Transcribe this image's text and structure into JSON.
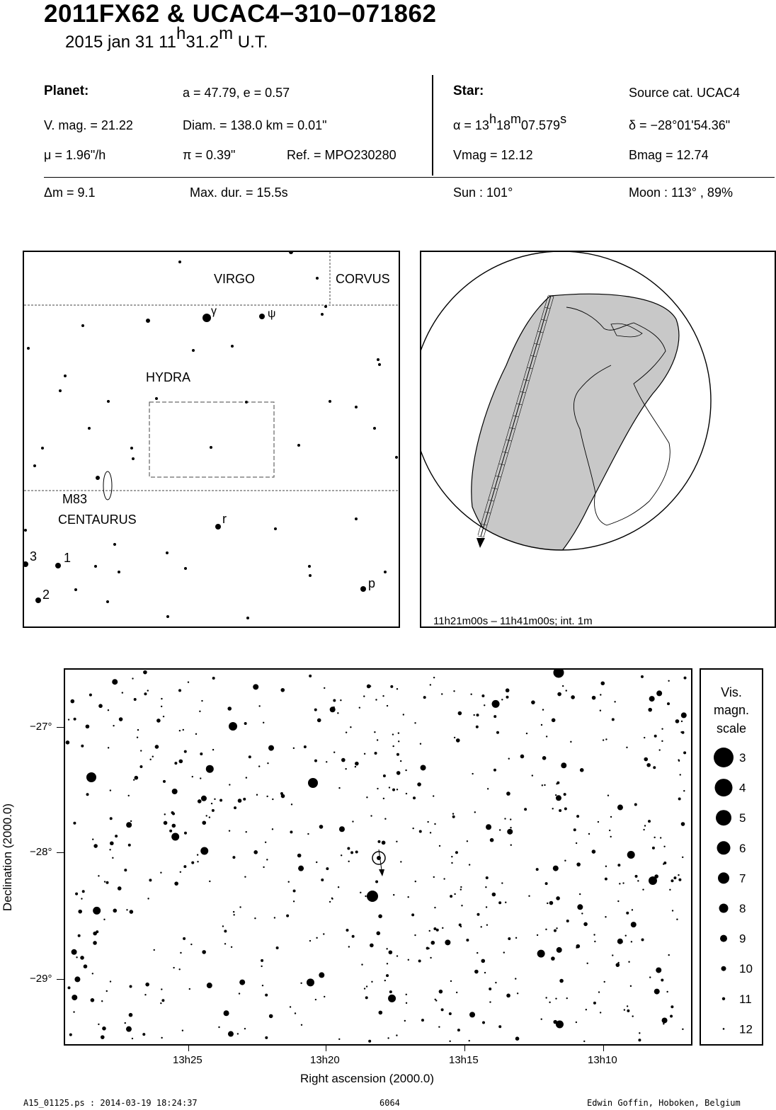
{
  "header": {
    "title": "2011FX62  &  UCAC4−310−071862",
    "date": "2015 jan 31  11",
    "hour_sup": "h",
    "minutes": "31.2",
    "min_sup": "m",
    "ut": " U.T."
  },
  "planet": {
    "heading": "Planet:",
    "orbit": "a = 47.79, e = 0.57",
    "vmag": "V. mag. = 21.22",
    "diam": "Diam. = 138.0 km = 0.01\"",
    "mu": "μ =  1.96\"/h",
    "pi": "π =  0.39\"",
    "ref": "Ref. = MPO230280"
  },
  "star": {
    "heading": "Star:",
    "source": "Source cat.  UCAC4",
    "alpha_prefix": "α = 13",
    "alpha_h": "h",
    "alpha_mid": "18",
    "alpha_m": "m",
    "alpha_sec": "07.579",
    "alpha_s": "s",
    "delta": "δ = −28°01'54.36\"",
    "vmag": "Vmag = 12.12",
    "bmag": "Bmag = 12.74"
  },
  "event": {
    "dm": "Δm = 9.1",
    "maxdur": "Max. dur. = 15.5s",
    "sun": "Sun : 101°",
    "moon": "Moon : 113° , 89%"
  },
  "finder": {
    "constellations": [
      "VIRGO",
      "CORVUS",
      "HYDRA",
      "CENTAURUS"
    ],
    "object": "M83",
    "greek": [
      "γ",
      "ψ"
    ],
    "letters": [
      "r",
      "p"
    ],
    "numbers": [
      "3",
      "1",
      "2"
    ]
  },
  "globe": {
    "caption": "11h21m00s – 11h41m00s; int.  1m"
  },
  "detail_chart": {
    "dec_ticks": [
      "−27°",
      "−28°",
      "−29°"
    ],
    "ra_ticks": [
      "13h25",
      "13h20",
      "13h15",
      "13h10"
    ],
    "xlabel": "Right ascension (2000.0)",
    "ylabel": "Declination (2000.0)"
  },
  "scale": {
    "title": [
      "Vis.",
      "magn.",
      "scale"
    ],
    "mags": [
      "3",
      "4",
      "5",
      "6",
      "7",
      "8",
      "9",
      "10",
      "11",
      "12"
    ]
  },
  "footer": {
    "left": "A15_01125.ps : 2014-03-19 18:24:37",
    "mid": "6064",
    "right": "Edwin Goffin, Hoboken, Belgium"
  }
}
